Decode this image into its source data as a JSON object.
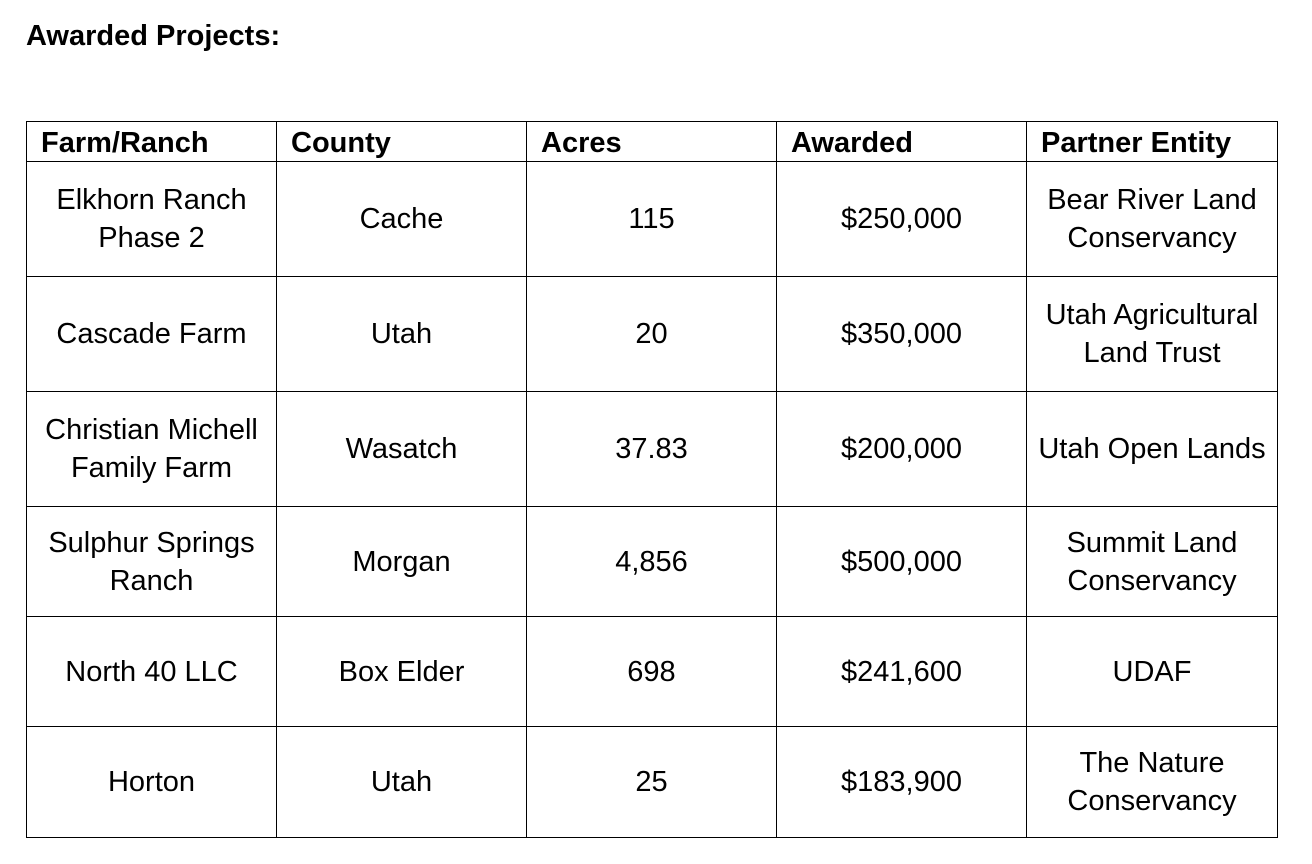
{
  "heading": "Awarded Projects:",
  "table": {
    "headers": [
      "Farm/Ranch",
      "County",
      "Acres",
      "Awarded",
      "Partner Entity"
    ],
    "rows": [
      [
        "Elkhorn Ranch Phase 2",
        "Cache",
        "115",
        "$250,000",
        "Bear River Land Conservancy"
      ],
      [
        "Cascade Farm",
        "Utah",
        "20",
        "$350,000",
        "Utah Agricultural Land Trust"
      ],
      [
        "Christian Michell Family Farm",
        "Wasatch",
        "37.83",
        "$200,000",
        "Utah Open Lands"
      ],
      [
        "Sulphur Springs Ranch",
        "Morgan",
        "4,856",
        "$500,000",
        "Summit Land Conservancy"
      ],
      [
        "North 40 LLC",
        "Box Elder",
        "698",
        "$241,600",
        "UDAF"
      ],
      [
        "Horton",
        "Utah",
        "25",
        "$183,900",
        "The Nature Conservancy"
      ]
    ]
  }
}
